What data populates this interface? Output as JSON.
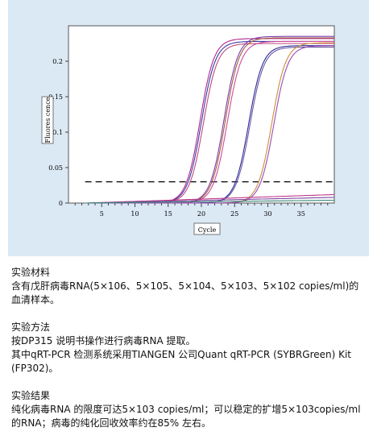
{
  "chart_data": {
    "type": "line",
    "ylabel": "Fluores cence",
    "xlabel": "Cycle",
    "xlim": [
      0,
      40
    ],
    "ylim": [
      0,
      0.25
    ],
    "x_ticks": [
      "5",
      "10",
      "15",
      "20",
      "25",
      "30",
      "35"
    ],
    "y_ticks": [
      "0",
      "0.05",
      "0.1",
      "0.15",
      "0.2"
    ],
    "threshold": 0.03,
    "series": [
      {
        "color": "#b02a8c",
        "midpoint": 19.8,
        "plateau": 0.232,
        "slope": 0.95
      },
      {
        "color": "#3a3aa8",
        "midpoint": 20.0,
        "plateau": 0.228,
        "slope": 0.95
      },
      {
        "color": "#c04a7a",
        "midpoint": 20.3,
        "plateau": 0.225,
        "slope": 0.95
      },
      {
        "color": "#7a3ab0",
        "midpoint": 23.4,
        "plateau": 0.235,
        "slope": 0.95
      },
      {
        "color": "#a0603a",
        "midpoint": 23.6,
        "plateau": 0.233,
        "slope": 0.95
      },
      {
        "color": "#d04a9a",
        "midpoint": 23.9,
        "plateau": 0.228,
        "slope": 0.95
      },
      {
        "color": "#2a2a9a",
        "midpoint": 27.1,
        "plateau": 0.222,
        "slope": 0.95
      },
      {
        "color": "#6a5aa0",
        "midpoint": 27.3,
        "plateau": 0.22,
        "slope": 0.95
      },
      {
        "color": "#c8903a",
        "midpoint": 30.6,
        "plateau": 0.226,
        "slope": 0.95
      },
      {
        "color": "#9a4ab0",
        "midpoint": 30.9,
        "plateau": 0.222,
        "slope": 0.95
      },
      {
        "color": "#c03a8a",
        "baseline_end": 0.012
      },
      {
        "color": "#7a4aa0",
        "baseline_end": 0.008
      },
      {
        "color": "#3a8a7a",
        "baseline_end": 0.004
      }
    ]
  },
  "text": {
    "s1_title": "实验材料",
    "s1_line1": "含有戊肝病毒RNA(5×106、5×105、5×104、5×103、5×102 copies/ml)的",
    "s1_line2": "血清样本。",
    "s2_title": "实验方法",
    "s2_line1": "按DP315 说明书操作进行病毒RNA 提取。",
    "s2_line2": "其中qRT-PCR 检测系统采用TIANGEN 公司Quant qRT-PCR (SYBRGreen) Kit",
    "s2_line3": "(FP302)。",
    "s3_title": "实验结果",
    "s3_line1": "纯化病毒RNA 的限度可达5×103 copies/ml；可以稳定的扩增5×103copies/ml",
    "s3_line2": "的RNA；病毒的纯化回收效率约在85% 左右。"
  },
  "colors": {
    "panel_bg": "#dbe9f5",
    "plot_bg": "#ffffff"
  }
}
